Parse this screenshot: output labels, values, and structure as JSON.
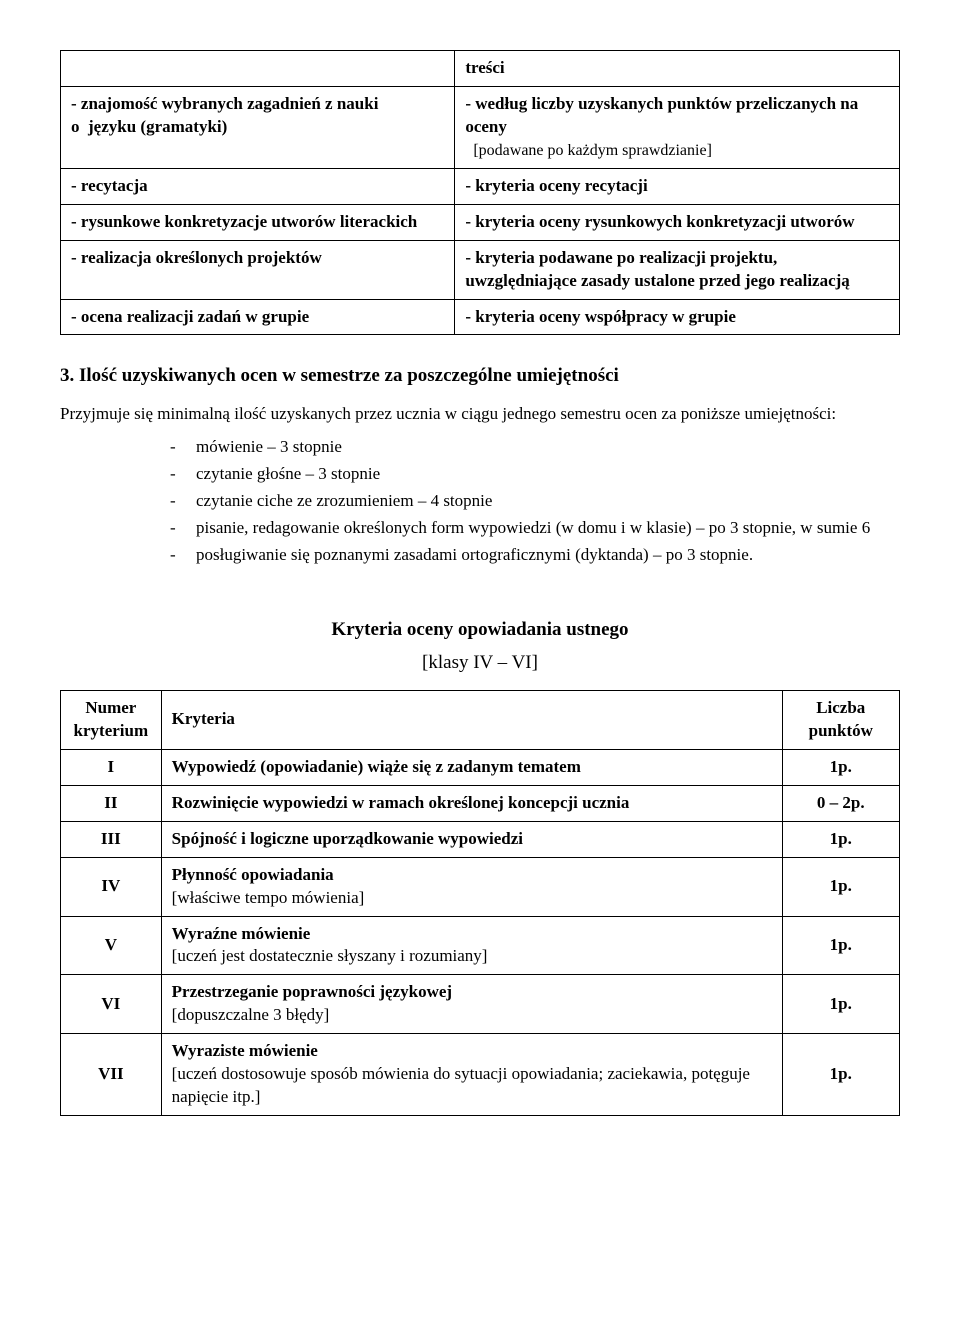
{
  "map_table": {
    "rows": [
      {
        "left_html": "",
        "right_html": "<span class='b'>treści</span>"
      },
      {
        "left_html": "<span class='b'>- znajomość wybranych zagadnień z nauki o&nbsp;&nbsp;języku (gramatyki)</span>",
        "right_html": "<span class='b'>- według liczby uzyskanych punktów przeliczanych na oceny</span><br><span class='small-note'>&nbsp;&nbsp;[podawane po każdym sprawdzianie]</span>"
      },
      {
        "left_html": "<span class='b'>- recytacja</span>",
        "right_html": "<span class='b'>- kryteria oceny recytacji</span>"
      },
      {
        "left_html": "<span class='b'>- rysunkowe konkretyzacje utworów literackich</span>",
        "right_html": "<span class='b'>- kryteria oceny rysunkowych konkretyzacji utworów</span>"
      },
      {
        "left_html": "<span class='b'>- realizacja określonych projektów</span>",
        "right_html": "<span class='b'>- kryteria podawane po realizacji projektu, uwzględniające zasady ustalone przed jego realizacją</span>"
      },
      {
        "left_html": "<span class='b'>- ocena realizacji zadań w grupie</span>",
        "right_html": "<span class='b'>- kryteria oceny współpracy w grupie</span>"
      }
    ]
  },
  "section3": {
    "heading": "3. Ilość uzyskiwanych ocen w semestrze za poszczególne umiejętności",
    "intro": "Przyjmuje się minimalną ilość uzyskanych przez ucznia w ciągu jednego semestru ocen za poniższe umiejętności:",
    "items": [
      "mówienie – 3 stopnie",
      "czytanie głośne – 3 stopnie",
      "czytanie ciche ze zrozumieniem – 4 stopnie",
      "pisanie, redagowanie określonych form wypowiedzi (w domu i w klasie) – po 3 stopnie, w sumie 6",
      "posługiwanie się poznanymi zasadami ortograficznymi (dyktanda) – po 3 stopnie."
    ]
  },
  "criteria_block": {
    "title": "Kryteria oceny opowiadania ustnego",
    "subtitle": "[klasy IV – VI]",
    "headers": {
      "num": "Numer kryterium",
      "crit": "Kryteria",
      "pts": "Liczba punktów"
    },
    "rows": [
      {
        "num": "I",
        "crit_html": "<span class='b'>Wypowiedź (opowiadanie) wiąże się z zadanym tematem</span>",
        "pts": "1p."
      },
      {
        "num": "II",
        "crit_html": "<span class='b'>Rozwinięcie wypowiedzi w ramach określonej koncepcji ucznia</span>",
        "pts": "0 – 2p."
      },
      {
        "num": "III",
        "crit_html": "<span class='b'>Spójność i logiczne uporządkowanie wypowiedzi</span>",
        "pts": "1p."
      },
      {
        "num": "IV",
        "crit_html": "<span class='b'>Płynność opowiadania</span><br><span class='crit-sub'>[właściwe tempo mówienia]</span>",
        "pts": "1p."
      },
      {
        "num": "V",
        "crit_html": "<span class='b'>Wyraźne mówienie</span><br><span class='crit-sub'>[uczeń jest dostatecznie słyszany i rozumiany]</span>",
        "pts": "1p."
      },
      {
        "num": "VI",
        "crit_html": "<span class='b'>Przestrzeganie poprawności językowej</span><br><span class='crit-sub'>[dopuszczalne 3 błędy]</span>",
        "pts": "1p."
      },
      {
        "num": "VII",
        "crit_html": "<span class='b'>Wyraziste mówienie</span><br><span class='crit-sub'>[uczeń dostosowuje sposób mówienia do sytuacji opowiadania; zaciekawia, potęguje napięcie itp.]</span>",
        "pts": "1p."
      }
    ]
  }
}
